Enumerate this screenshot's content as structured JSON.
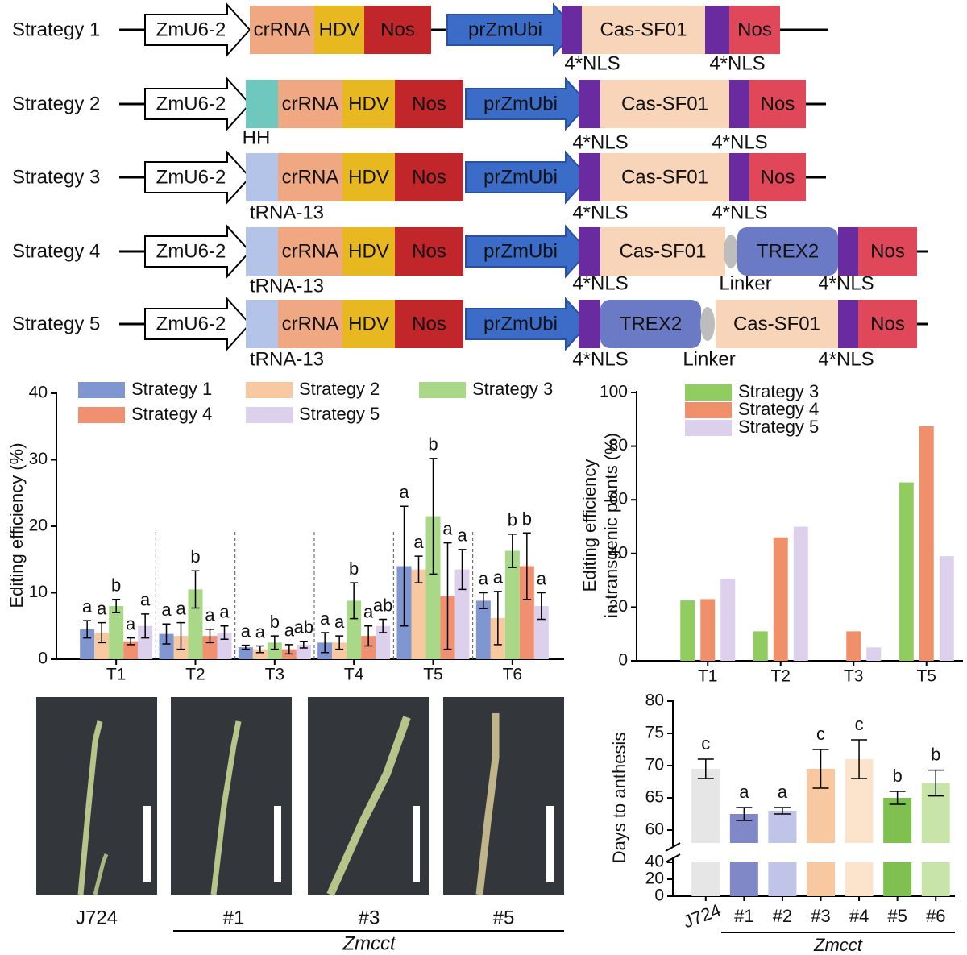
{
  "constructs": [
    {
      "label": "Strategy 1",
      "parts": [
        "ZmU6-2",
        "crRNA",
        "HDV",
        "Nos",
        "prZmUbi",
        "Cas-SF01",
        "Nos"
      ],
      "notes": [
        "4*NLS",
        "4*NLS"
      ]
    },
    {
      "label": "Strategy 2",
      "parts": [
        "ZmU6-2",
        "crRNA",
        "HDV",
        "Nos",
        "prZmUbi",
        "Cas-SF01",
        "Nos"
      ],
      "notes": [
        "HH",
        "4*NLS",
        "4*NLS"
      ]
    },
    {
      "label": "Strategy 3",
      "parts": [
        "ZmU6-2",
        "crRNA",
        "HDV",
        "Nos",
        "prZmUbi",
        "Cas-SF01",
        "Nos"
      ],
      "notes": [
        "tRNA-13",
        "4*NLS",
        "4*NLS"
      ]
    },
    {
      "label": "Strategy 4",
      "parts": [
        "ZmU6-2",
        "crRNA",
        "HDV",
        "Nos",
        "prZmUbi",
        "Cas-SF01",
        "TREX2",
        "Nos"
      ],
      "notes": [
        "tRNA-13",
        "4*NLS",
        "Linker",
        "4*NLS"
      ]
    },
    {
      "label": "Strategy 5",
      "parts": [
        "ZmU6-2",
        "crRNA",
        "HDV",
        "Nos",
        "prZmUbi",
        "TREX2",
        "Cas-SF01",
        "Nos"
      ],
      "notes": [
        "tRNA-13",
        "4*NLS",
        "Linker",
        "4*NLS"
      ]
    }
  ],
  "chart_data": [
    {
      "type": "bar",
      "ylabel": "Editing efficiency (%)",
      "categories": [
        "T1",
        "T2",
        "T3",
        "T4",
        "T5",
        "T6"
      ],
      "ylim": [
        0,
        40
      ],
      "yticks": [
        0,
        10,
        20,
        30,
        40
      ],
      "series": [
        {
          "name": "Strategy 1",
          "color": "#8096d0",
          "values": [
            4.5,
            3.8,
            1.8,
            2.5,
            14,
            8.8
          ],
          "errors": [
            1.3,
            1.5,
            0.3,
            1.5,
            9,
            1.2
          ],
          "letters": [
            "a",
            "a",
            "a",
            "a",
            "a",
            "a"
          ]
        },
        {
          "name": "Strategy 2",
          "color": "#f8c8a0",
          "values": [
            4,
            3.5,
            1.5,
            2.5,
            13.5,
            6.2
          ],
          "errors": [
            1.5,
            2,
            0.5,
            1,
            2,
            4
          ],
          "letters": [
            "a",
            "a",
            "a",
            "a",
            "a",
            "a"
          ]
        },
        {
          "name": "Strategy 3",
          "color": "#a8d888",
          "values": [
            8,
            10.5,
            2.5,
            8.8,
            21.5,
            16.3
          ],
          "errors": [
            1,
            2.8,
            1,
            2.7,
            8.7,
            2.5
          ],
          "letters": [
            "b",
            "b",
            "b",
            "b",
            "b",
            "b"
          ]
        },
        {
          "name": "Strategy 4",
          "color": "#f09070",
          "values": [
            2.7,
            3.5,
            1.5,
            3.5,
            9.5,
            14
          ],
          "errors": [
            0.5,
            1,
            0.7,
            1.5,
            8,
            5
          ],
          "letters": [
            "a",
            "a",
            "a",
            "a",
            "a",
            "b"
          ]
        },
        {
          "name": "Strategy 5",
          "color": "#dcd0ec",
          "values": [
            5,
            4,
            2.2,
            5,
            13.5,
            8
          ],
          "errors": [
            1.8,
            1,
            0.5,
            1,
            3,
            2
          ],
          "letters": [
            "a",
            "a",
            "ab",
            "ab",
            "a",
            "a"
          ]
        }
      ]
    },
    {
      "type": "bar",
      "ylabel": [
        "Editing efficiency",
        "in transgenic plants (%)"
      ],
      "categories": [
        "T1",
        "T2",
        "T3",
        "T5"
      ],
      "ylim": [
        0,
        100
      ],
      "yticks": [
        0,
        20,
        40,
        60,
        80,
        100
      ],
      "series": [
        {
          "name": "Strategy 3",
          "color": "#90cc60",
          "values": [
            22.5,
            11,
            0,
            66.5
          ]
        },
        {
          "name": "Strategy 4",
          "color": "#f0906a",
          "values": [
            23,
            46,
            11,
            87.5
          ]
        },
        {
          "name": "Strategy 5",
          "color": "#dcd0ec",
          "values": [
            30.5,
            50,
            5,
            39
          ]
        }
      ]
    },
    {
      "type": "broken-bar",
      "ylabel": "Days to anthesis",
      "categories": [
        "J724",
        "#1",
        "#2",
        "#3",
        "#4",
        "#5",
        "#6"
      ],
      "group_label": "Zmcct",
      "ylim": [
        58,
        80
      ],
      "yticks": [
        60,
        65,
        70,
        75,
        80
      ],
      "ylim_lower": [
        0,
        40
      ],
      "yticks_lower": [
        0,
        20,
        40
      ],
      "values": [
        69.5,
        62.5,
        63,
        69.5,
        71,
        65,
        67.3
      ],
      "errors": [
        1.5,
        1,
        0.5,
        3,
        3,
        1,
        2
      ],
      "letters": [
        "c",
        "a",
        "a",
        "c",
        "c",
        "b",
        "b"
      ],
      "colors": [
        "#e6e6e6",
        "#8088c8",
        "#c0c4e8",
        "#f8c8a0",
        "#fce4cc",
        "#80c050",
        "#c8e4a8"
      ]
    }
  ],
  "photos": {
    "labels": [
      "J724",
      "#1",
      "#3",
      "#5"
    ],
    "group_label": "Zmcct"
  }
}
